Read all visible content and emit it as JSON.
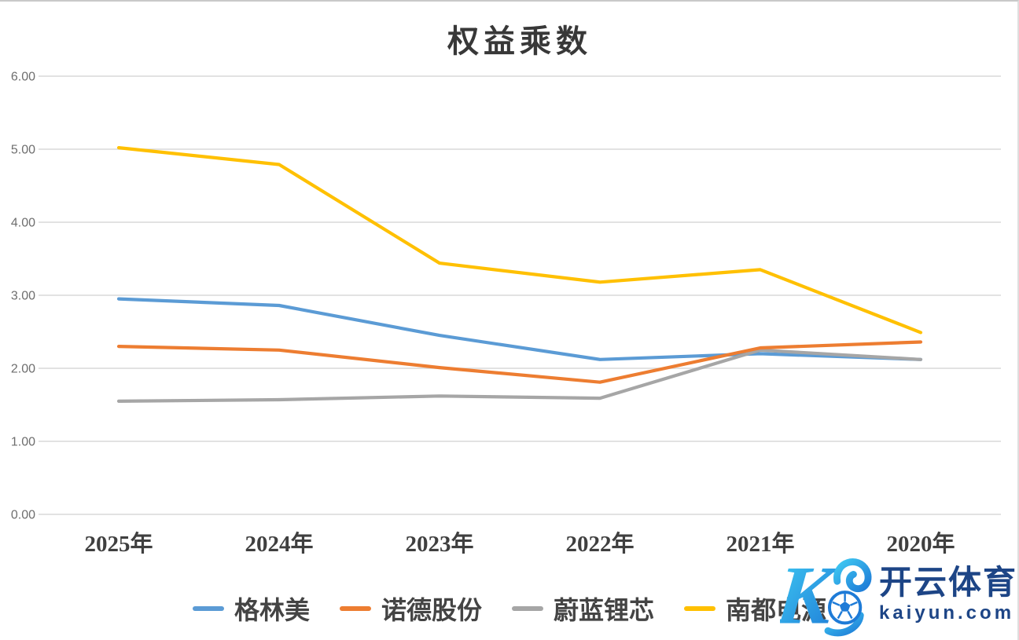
{
  "chart_data": {
    "type": "line",
    "title": "权益乘数",
    "categories": [
      "2025年",
      "2024年",
      "2023年",
      "2022年",
      "2021年",
      "2020年"
    ],
    "series": [
      {
        "name": "格林美",
        "color": "#5B9BD5",
        "values": [
          2.95,
          2.86,
          2.45,
          2.12,
          2.2,
          2.12
        ]
      },
      {
        "name": "诺德股份",
        "color": "#ED7D31",
        "values": [
          2.3,
          2.25,
          2.01,
          1.81,
          2.28,
          2.36
        ]
      },
      {
        "name": "蔚蓝锂芯",
        "color": "#A6A6A6",
        "values": [
          1.55,
          1.57,
          1.62,
          1.59,
          2.25,
          2.12
        ]
      },
      {
        "name": "南都电源",
        "color": "#FFC000",
        "values": [
          5.02,
          4.79,
          3.44,
          3.18,
          3.35,
          2.49
        ]
      }
    ],
    "ylim": [
      0,
      6
    ],
    "ytick_labels": [
      "0.00",
      "1.00",
      "2.00",
      "3.00",
      "4.00",
      "5.00",
      "6.00"
    ],
    "grid": true,
    "legend_position": "bottom",
    "gridline_color": "#d9d9d9"
  },
  "watermark": {
    "brand_cn": "开云体育",
    "brand_en": "kaiyun.com",
    "logo_letter": "K",
    "accent_blue": "#1d4586",
    "logo_gradient_start": "#3FC9F2",
    "logo_gradient_end": "#1E7BD7"
  }
}
